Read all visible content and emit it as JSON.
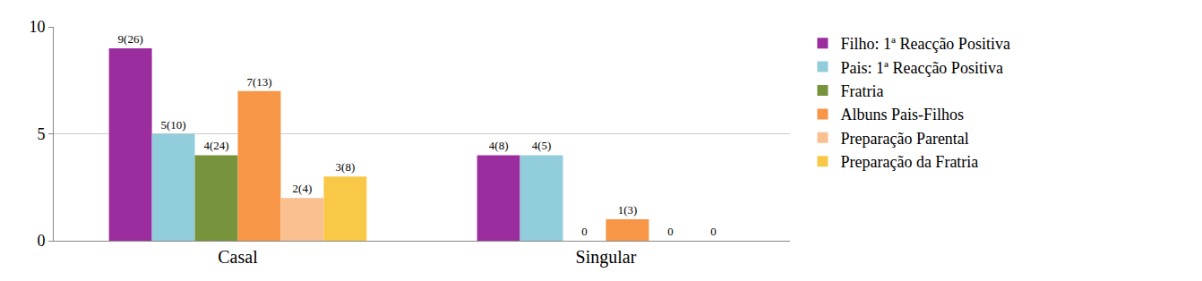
{
  "chart_data": {
    "type": "bar",
    "categories": [
      "Casal",
      "Singular"
    ],
    "series": [
      {
        "name": "Filho: 1ª Reacção Positiva",
        "color": "#9b2d9f",
        "values": [
          9,
          4
        ],
        "value_labels": [
          "9(26)",
          "4(8)"
        ]
      },
      {
        "name": "Pais: 1ª Reacção Positiva",
        "color": "#92cddc",
        "values": [
          5,
          4
        ],
        "value_labels": [
          "5(10)",
          "4(5)"
        ]
      },
      {
        "name": "Fratria",
        "color": "#77933c",
        "values": [
          4,
          0
        ],
        "value_labels": [
          "4(24)",
          "0"
        ]
      },
      {
        "name": "Albuns Pais-Filhos",
        "color": "#f79646",
        "values": [
          7,
          1
        ],
        "value_labels": [
          "7(13)",
          "1(3)"
        ]
      },
      {
        "name": "Preparação Parental",
        "color": "#fac090",
        "values": [
          2,
          0
        ],
        "value_labels": [
          "2(4)",
          "0"
        ]
      },
      {
        "name": "Preparação da Fratria",
        "color": "#f9c846",
        "values": [
          3,
          0
        ],
        "value_labels": [
          "3(8)",
          "0"
        ]
      }
    ],
    "ylim": [
      0,
      10
    ],
    "yticks": [
      0,
      5,
      10
    ],
    "grid": true,
    "legend": "right",
    "data_labels": true
  }
}
